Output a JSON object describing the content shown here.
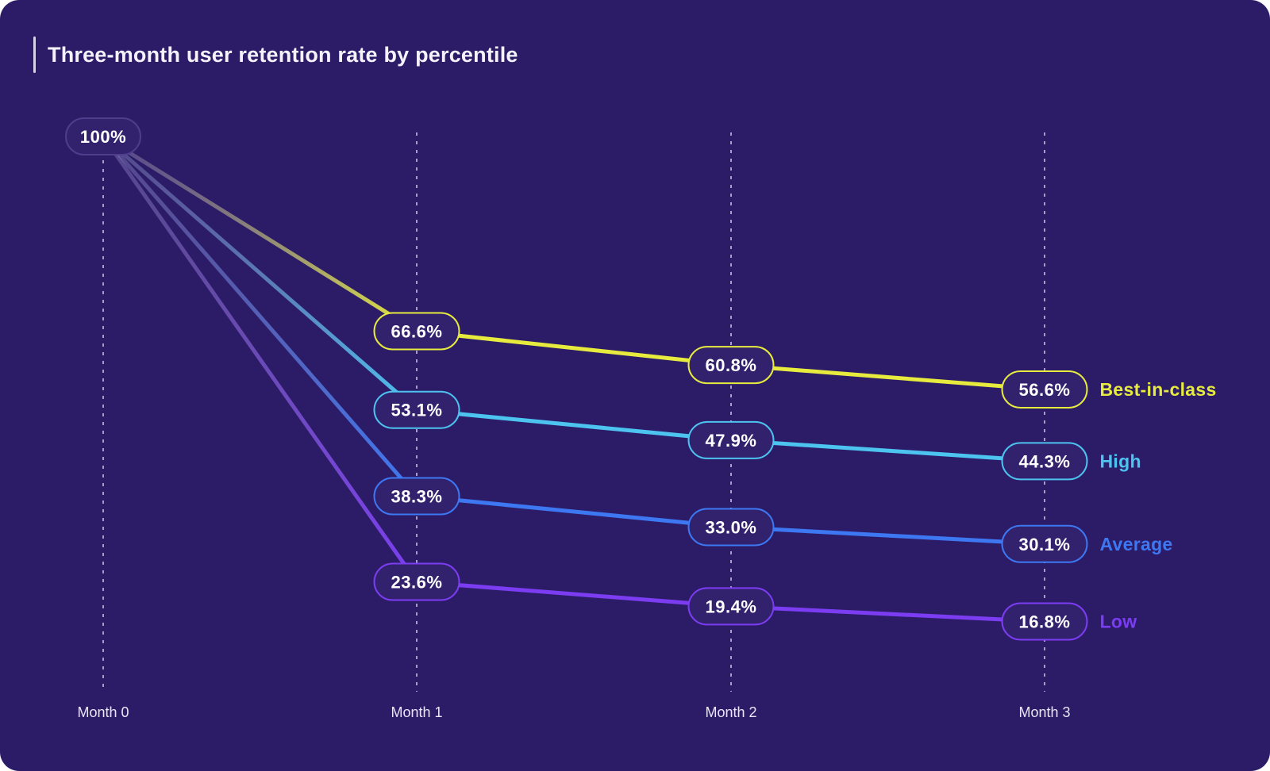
{
  "theme": {
    "background": "#2c1c68",
    "page_background": "#ffffff",
    "pill_fill": "#32226e",
    "start_pill_border": "#4e3d8c",
    "pill_text_color": "#ffffff",
    "grid_line_color": "#cfcae6",
    "title_color": "#f4f2fb",
    "axis_label_color": "#e9e6f7",
    "accent_bar_color": "#d6d2ea",
    "line_fade_start": "#8d80bd"
  },
  "chart_data": {
    "type": "line",
    "title": "Three-month user retention rate by percentile",
    "x_categories": [
      "Month 0",
      "Month 1",
      "Month 2",
      "Month 3"
    ],
    "start_point": {
      "value": 100,
      "label": "100%"
    },
    "y_unit": "%",
    "ylim": [
      0,
      100
    ],
    "grid": "vertical-dashed",
    "legend_position": "right-of-last-point",
    "series": [
      {
        "name": "Best-in-class",
        "color": "#e6eb3e",
        "values": [
          100,
          66.6,
          60.8,
          56.6
        ],
        "labels": [
          "100%",
          "66.6%",
          "60.8%",
          "56.6%"
        ]
      },
      {
        "name": "High",
        "color": "#4dc3f0",
        "values": [
          100,
          53.1,
          47.9,
          44.3
        ],
        "labels": [
          "100%",
          "53.1%",
          "47.9%",
          "44.3%"
        ]
      },
      {
        "name": "Average",
        "color": "#3d78f2",
        "values": [
          100,
          38.3,
          33.0,
          30.1
        ],
        "labels": [
          "100%",
          "38.3%",
          "33.0%",
          "30.1%"
        ]
      },
      {
        "name": "Low",
        "color": "#7c3df2",
        "values": [
          100,
          23.6,
          19.4,
          16.8
        ],
        "labels": [
          "100%",
          "23.6%",
          "19.4%",
          "16.8%"
        ]
      }
    ]
  }
}
